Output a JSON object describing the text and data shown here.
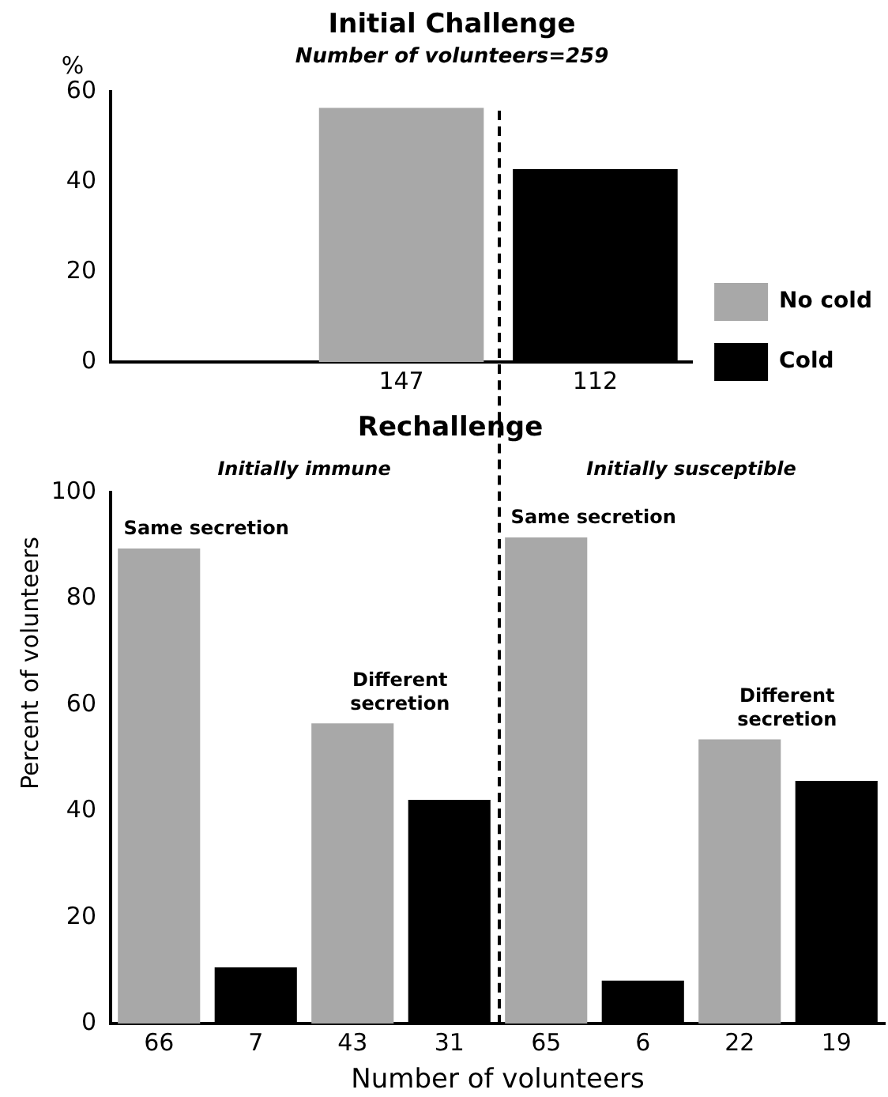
{
  "chart_data": [
    {
      "type": "bar",
      "title": "Initial Challenge",
      "subtitle": "Number of volunteers=259",
      "ylabel": "%",
      "categories": [
        null,
        "147",
        "112"
      ],
      "series": [
        {
          "name": "No cold",
          "color": "#a8a8a8",
          "values": [
            null,
            56.4,
            null
          ]
        },
        {
          "name": "Cold",
          "color": "#000000",
          "values": [
            null,
            null,
            42.8
          ]
        }
      ],
      "ylim": [
        0,
        60
      ],
      "yticks": [
        0,
        20,
        40,
        60
      ],
      "grid": false,
      "legend": "right"
    },
    {
      "type": "bar",
      "title": "Rechallenge",
      "ylabel": "Percent of volunteers",
      "xlabel": "Number of volunteers",
      "categories": [
        "66",
        "7",
        "43",
        "31",
        "65",
        "6",
        "22",
        "19"
      ],
      "series": [
        {
          "color": "#a8a8a8",
          "values": [
            89.4,
            null,
            56.5,
            null,
            91.5,
            null,
            53.5,
            null
          ]
        },
        {
          "color": "#000000",
          "values": [
            null,
            10.6,
            null,
            42.1,
            null,
            8.1,
            null,
            45.7
          ]
        }
      ],
      "annotations": [
        "Initially immune",
        "Initially susceptible",
        {
          "text": "Same secretion",
          "x": "66",
          "y": 89.4
        },
        {
          "text": "Different\nsecretion",
          "x": "43",
          "y": 56.5
        },
        {
          "text": "Same secretion",
          "x": "65",
          "y": 91.5
        },
        {
          "text": "Different\nsecretion",
          "x": "22",
          "y": 53.5
        }
      ],
      "ylim": [
        0,
        100
      ],
      "yticks": [
        0,
        20,
        40,
        60,
        80,
        100
      ],
      "grid": false,
      "legend": false
    }
  ]
}
